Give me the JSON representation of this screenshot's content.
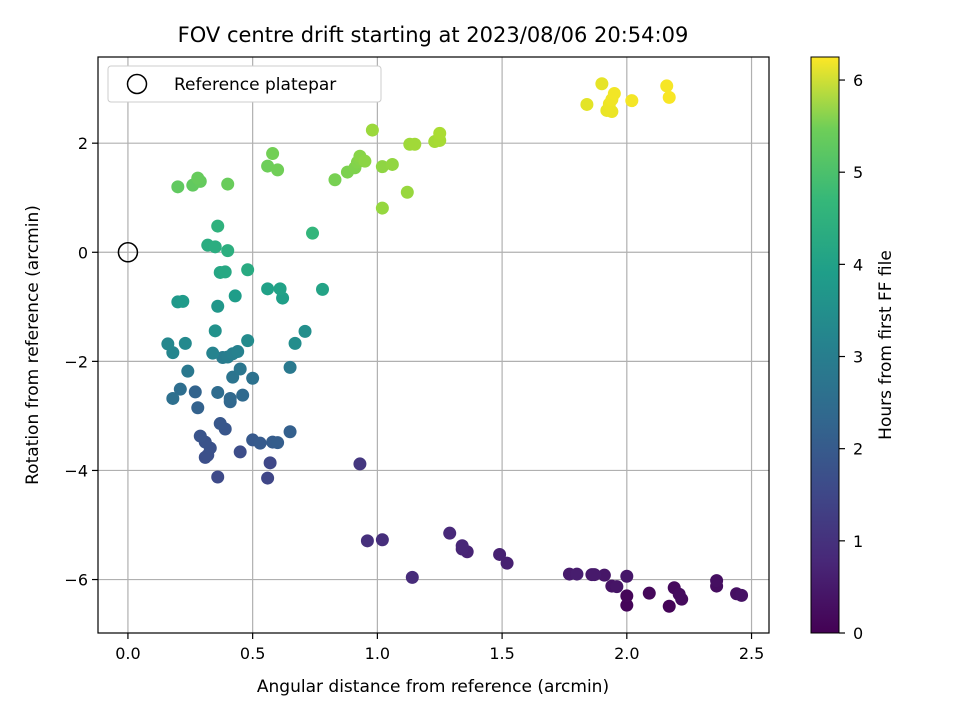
{
  "chart_data": {
    "type": "scatter",
    "title": "FOV centre drift starting at 2023/08/06 20:54:09",
    "xlabel": "Angular distance from reference (arcmin)",
    "ylabel": "Rotation from reference (arcmin)",
    "xlim": [
      -0.12,
      2.57
    ],
    "ylim": [
      -6.98,
      3.58
    ],
    "xticks": [
      "0.0",
      "0.5",
      "1.0",
      "1.5",
      "2.0",
      "2.5"
    ],
    "yticks": [
      "-6",
      "-4",
      "-2",
      "0",
      "2"
    ],
    "grid": true,
    "legend": {
      "position": "top-left",
      "entries": [
        "Reference platepar"
      ]
    },
    "reference_point": {
      "x": 0.0,
      "y": 0.0
    },
    "colorbar": {
      "label": "Hours from first FF file",
      "range": [
        0,
        6.25
      ],
      "ticks": [
        "0",
        "1",
        "2",
        "3",
        "4",
        "5",
        "6"
      ],
      "colormap": "viridis"
    },
    "points": [
      {
        "x": 2.17,
        "y": -6.49,
        "h": 0.05
      },
      {
        "x": 2.0,
        "y": -6.47,
        "h": 0.07
      },
      {
        "x": 2.0,
        "y": -6.3,
        "h": 0.1
      },
      {
        "x": 2.09,
        "y": -6.25,
        "h": 0.12
      },
      {
        "x": 2.19,
        "y": -6.15,
        "h": 0.15
      },
      {
        "x": 2.22,
        "y": -6.36,
        "h": 0.17
      },
      {
        "x": 2.21,
        "y": -6.27,
        "h": 0.2
      },
      {
        "x": 2.36,
        "y": -6.12,
        "h": 0.22
      },
      {
        "x": 2.36,
        "y": -6.02,
        "h": 0.25
      },
      {
        "x": 2.44,
        "y": -6.26,
        "h": 0.27
      },
      {
        "x": 2.46,
        "y": -6.29,
        "h": 0.3
      },
      {
        "x": 1.94,
        "y": -6.12,
        "h": 0.32
      },
      {
        "x": 1.96,
        "y": -6.13,
        "h": 0.35
      },
      {
        "x": 1.91,
        "y": -5.92,
        "h": 0.37
      },
      {
        "x": 2.0,
        "y": -5.94,
        "h": 0.4
      },
      {
        "x": 1.86,
        "y": -5.91,
        "h": 0.42
      },
      {
        "x": 1.87,
        "y": -5.91,
        "h": 0.45
      },
      {
        "x": 1.77,
        "y": -5.9,
        "h": 0.47
      },
      {
        "x": 1.8,
        "y": -5.9,
        "h": 0.5
      },
      {
        "x": 1.52,
        "y": -5.7,
        "h": 0.55
      },
      {
        "x": 1.49,
        "y": -5.54,
        "h": 0.58
      },
      {
        "x": 1.36,
        "y": -5.49,
        "h": 0.62
      },
      {
        "x": 1.34,
        "y": -5.44,
        "h": 0.65
      },
      {
        "x": 1.34,
        "y": -5.38,
        "h": 0.68
      },
      {
        "x": 1.29,
        "y": -5.15,
        "h": 0.72
      },
      {
        "x": 1.14,
        "y": -5.96,
        "h": 0.78
      },
      {
        "x": 1.02,
        "y": -5.27,
        "h": 0.82
      },
      {
        "x": 0.96,
        "y": -5.29,
        "h": 0.86
      },
      {
        "x": 0.93,
        "y": -3.88,
        "h": 1.0
      },
      {
        "x": 0.56,
        "y": -4.14,
        "h": 1.3
      },
      {
        "x": 0.57,
        "y": -3.86,
        "h": 1.35
      },
      {
        "x": 0.36,
        "y": -4.12,
        "h": 1.4
      },
      {
        "x": 0.45,
        "y": -3.66,
        "h": 1.45
      },
      {
        "x": 0.31,
        "y": -3.76,
        "h": 1.5
      },
      {
        "x": 0.32,
        "y": -3.72,
        "h": 1.52
      },
      {
        "x": 0.33,
        "y": -3.59,
        "h": 1.55
      },
      {
        "x": 0.31,
        "y": -3.48,
        "h": 1.58
      },
      {
        "x": 0.29,
        "y": -3.37,
        "h": 1.62
      },
      {
        "x": 0.39,
        "y": -3.24,
        "h": 1.66
      },
      {
        "x": 0.37,
        "y": -3.14,
        "h": 1.7
      },
      {
        "x": 0.5,
        "y": -3.44,
        "h": 1.74
      },
      {
        "x": 0.53,
        "y": -3.5,
        "h": 1.78
      },
      {
        "x": 0.58,
        "y": -3.48,
        "h": 1.82
      },
      {
        "x": 0.6,
        "y": -3.49,
        "h": 1.86
      },
      {
        "x": 0.65,
        "y": -3.29,
        "h": 1.9
      },
      {
        "x": 0.28,
        "y": -2.85,
        "h": 1.95
      },
      {
        "x": 0.27,
        "y": -2.56,
        "h": 2.0
      },
      {
        "x": 0.41,
        "y": -2.74,
        "h": 2.05
      },
      {
        "x": 0.41,
        "y": -2.68,
        "h": 2.1
      },
      {
        "x": 0.46,
        "y": -2.62,
        "h": 2.15
      },
      {
        "x": 0.36,
        "y": -2.57,
        "h": 2.2
      },
      {
        "x": 0.21,
        "y": -2.51,
        "h": 2.25
      },
      {
        "x": 0.18,
        "y": -2.68,
        "h": 2.3
      },
      {
        "x": 0.5,
        "y": -2.31,
        "h": 2.35
      },
      {
        "x": 0.42,
        "y": -2.29,
        "h": 2.4
      },
      {
        "x": 0.45,
        "y": -2.14,
        "h": 2.45
      },
      {
        "x": 0.24,
        "y": -2.18,
        "h": 2.5
      },
      {
        "x": 0.65,
        "y": -2.11,
        "h": 2.55
      },
      {
        "x": 0.38,
        "y": -1.93,
        "h": 2.6
      },
      {
        "x": 0.4,
        "y": -1.92,
        "h": 2.65
      },
      {
        "x": 0.42,
        "y": -1.86,
        "h": 2.7
      },
      {
        "x": 0.44,
        "y": -1.82,
        "h": 2.75
      },
      {
        "x": 0.34,
        "y": -1.85,
        "h": 2.8
      },
      {
        "x": 0.18,
        "y": -1.84,
        "h": 2.85
      },
      {
        "x": 0.16,
        "y": -1.68,
        "h": 2.9
      },
      {
        "x": 0.23,
        "y": -1.67,
        "h": 2.95
      },
      {
        "x": 0.48,
        "y": -1.62,
        "h": 3.0
      },
      {
        "x": 0.67,
        "y": -1.67,
        "h": 3.05
      },
      {
        "x": 0.71,
        "y": -1.45,
        "h": 3.1
      },
      {
        "x": 0.35,
        "y": -1.44,
        "h": 3.15
      },
      {
        "x": 0.36,
        "y": -0.99,
        "h": 3.3
      },
      {
        "x": 0.2,
        "y": -0.91,
        "h": 3.35
      },
      {
        "x": 0.22,
        "y": -0.9,
        "h": 3.4
      },
      {
        "x": 0.43,
        "y": -0.8,
        "h": 3.45
      },
      {
        "x": 0.62,
        "y": -0.84,
        "h": 3.5
      },
      {
        "x": 0.56,
        "y": -0.67,
        "h": 3.55
      },
      {
        "x": 0.61,
        "y": -0.67,
        "h": 3.58
      },
      {
        "x": 0.78,
        "y": -0.68,
        "h": 3.62
      },
      {
        "x": 0.37,
        "y": -0.37,
        "h": 3.7
      },
      {
        "x": 0.39,
        "y": -0.36,
        "h": 3.75
      },
      {
        "x": 0.48,
        "y": -0.32,
        "h": 3.8
      },
      {
        "x": 0.32,
        "y": 0.13,
        "h": 3.85
      },
      {
        "x": 0.35,
        "y": 0.1,
        "h": 3.88
      },
      {
        "x": 0.4,
        "y": 0.03,
        "h": 3.92
      },
      {
        "x": 0.36,
        "y": 0.48,
        "h": 4.0
      },
      {
        "x": 0.74,
        "y": 0.35,
        "h": 4.1
      },
      {
        "x": 0.2,
        "y": 1.2,
        "h": 4.7
      },
      {
        "x": 0.26,
        "y": 1.23,
        "h": 4.72
      },
      {
        "x": 0.29,
        "y": 1.3,
        "h": 4.75
      },
      {
        "x": 0.28,
        "y": 1.36,
        "h": 4.78
      },
      {
        "x": 0.4,
        "y": 1.25,
        "h": 4.8
      },
      {
        "x": 0.56,
        "y": 1.58,
        "h": 4.85
      },
      {
        "x": 0.6,
        "y": 1.51,
        "h": 4.88
      },
      {
        "x": 0.58,
        "y": 1.81,
        "h": 4.9
      },
      {
        "x": 0.83,
        "y": 1.33,
        "h": 4.95
      },
      {
        "x": 0.88,
        "y": 1.47,
        "h": 5.0
      },
      {
        "x": 0.91,
        "y": 1.55,
        "h": 5.03
      },
      {
        "x": 0.92,
        "y": 1.65,
        "h": 5.06
      },
      {
        "x": 0.93,
        "y": 1.7,
        "h": 5.09
      },
      {
        "x": 0.93,
        "y": 1.76,
        "h": 5.12
      },
      {
        "x": 0.95,
        "y": 1.67,
        "h": 5.15
      },
      {
        "x": 1.02,
        "y": 1.57,
        "h": 5.18
      },
      {
        "x": 1.06,
        "y": 1.61,
        "h": 5.21
      },
      {
        "x": 1.02,
        "y": 0.81,
        "h": 5.24
      },
      {
        "x": 1.12,
        "y": 1.1,
        "h": 5.27
      },
      {
        "x": 0.98,
        "y": 2.24,
        "h": 5.3
      },
      {
        "x": 1.13,
        "y": 1.98,
        "h": 5.33
      },
      {
        "x": 1.15,
        "y": 1.98,
        "h": 5.36
      },
      {
        "x": 1.23,
        "y": 2.03,
        "h": 5.39
      },
      {
        "x": 1.25,
        "y": 2.05,
        "h": 5.42
      },
      {
        "x": 1.25,
        "y": 2.18,
        "h": 5.45
      },
      {
        "x": 1.84,
        "y": 2.71,
        "h": 6.0
      },
      {
        "x": 1.9,
        "y": 3.09,
        "h": 6.03
      },
      {
        "x": 1.92,
        "y": 2.6,
        "h": 6.06
      },
      {
        "x": 1.94,
        "y": 2.58,
        "h": 6.08
      },
      {
        "x": 1.93,
        "y": 2.72,
        "h": 6.1
      },
      {
        "x": 1.94,
        "y": 2.8,
        "h": 6.12
      },
      {
        "x": 1.95,
        "y": 2.91,
        "h": 6.14
      },
      {
        "x": 2.02,
        "y": 2.78,
        "h": 6.16
      },
      {
        "x": 2.16,
        "y": 3.05,
        "h": 6.18
      },
      {
        "x": 2.17,
        "y": 2.84,
        "h": 6.2
      }
    ]
  }
}
